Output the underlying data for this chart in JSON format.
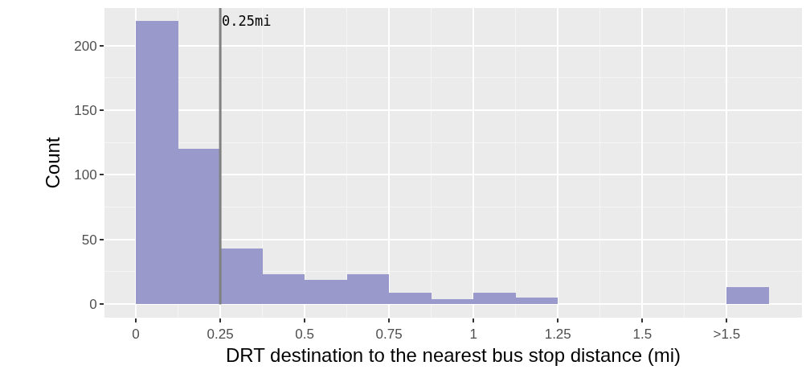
{
  "chart_data": {
    "type": "histogram",
    "xlabel": "DRT destination to the nearest bus stop distance (mi)",
    "ylabel": "Count",
    "bins": [
      0,
      0.125,
      0.25,
      0.375,
      0.5,
      0.625,
      0.75,
      0.875,
      1,
      1.125,
      1.25,
      1.375,
      1.5,
      1.625,
      1.75,
      1.875
    ],
    "values": [
      219,
      120,
      43,
      23,
      19,
      23,
      9,
      4,
      9,
      5,
      0,
      0,
      0,
      0,
      13
    ],
    "color": "#9a99cc",
    "xlim": [
      -0.093,
      1.973
    ],
    "ylim": [
      -10.5,
      229
    ],
    "xticks": [
      0,
      0.25,
      0.5,
      0.75,
      1,
      1.25,
      1.5,
      {
        "value": 1.75,
        "label": ">1.5"
      }
    ],
    "yticks": [
      0,
      50,
      100,
      150,
      200
    ],
    "grid": true,
    "ref_lines": [
      {
        "axis": "x",
        "value": 0.25,
        "label": "0.25mi",
        "color": "#808080",
        "line_style": "solid"
      }
    ]
  }
}
